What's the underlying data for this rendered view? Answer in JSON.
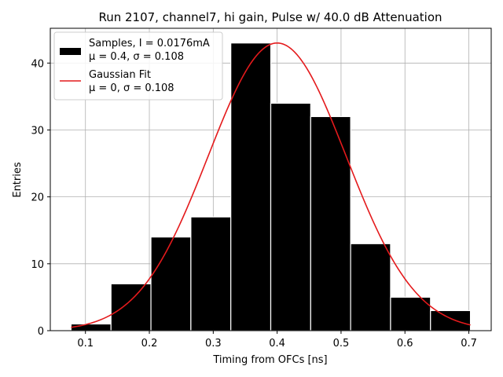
{
  "chart_data": {
    "type": "bar",
    "title": "Run 2107, channel7, hi gain, Pulse w/ 40.0 dB Attenuation",
    "xlabel": "Timing from OFCs [ns]",
    "ylabel": "Entries",
    "xlim": [
      0.045,
      0.735
    ],
    "ylim": [
      0,
      45.2
    ],
    "xticks": [
      "0.1",
      "0.2",
      "0.3",
      "0.4",
      "0.5",
      "0.6",
      "0.7"
    ],
    "yticks": [
      "0",
      "10",
      "20",
      "30",
      "40"
    ],
    "grid": true,
    "legend_position": "top-left",
    "histogram": {
      "name": "Samples, I = 0.0176mA",
      "stats": "μ = 0.4, σ = 0.108",
      "color": "#000000",
      "edge_color": "#ffffff",
      "bin_edges": [
        0.0775,
        0.14,
        0.2025,
        0.265,
        0.3275,
        0.39,
        0.4525,
        0.515,
        0.5775,
        0.64,
        0.7025
      ],
      "counts": [
        1,
        7,
        14,
        17,
        43,
        34,
        32,
        13,
        5,
        3
      ]
    },
    "fit": {
      "name": "Gaussian Fit",
      "stats": "μ = 0, σ = 0.108",
      "color": "#e41a1c",
      "mu": 0.4,
      "sigma": 0.108,
      "amplitude": 43,
      "x_range": [
        0.0775,
        0.7025
      ]
    }
  }
}
